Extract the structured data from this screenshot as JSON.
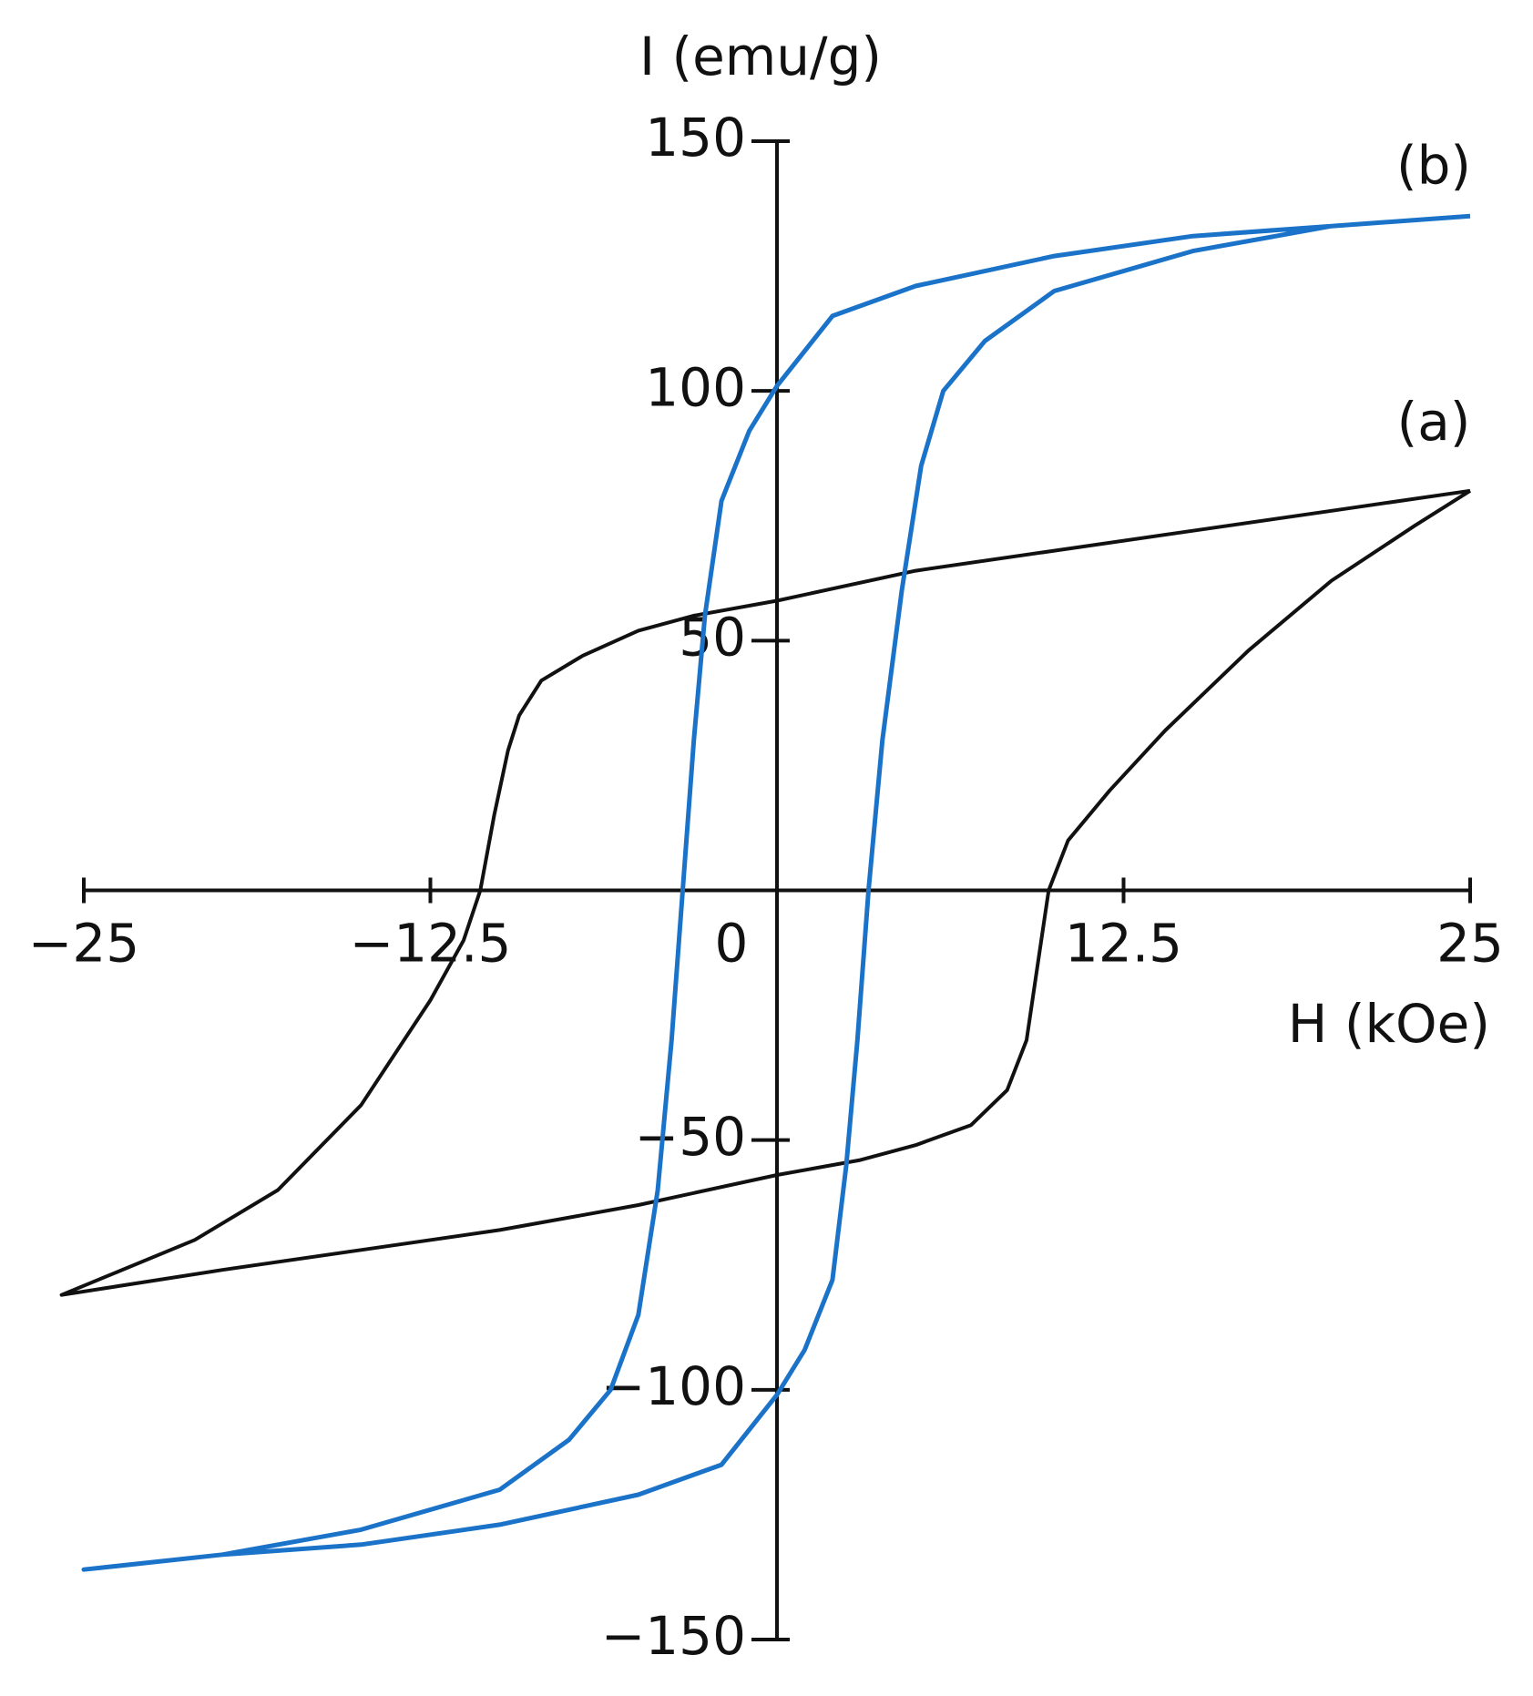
{
  "chart_data": {
    "type": "line",
    "x_label": "H (kOe)",
    "y_label": "I (emu/g)",
    "xlim": [
      -25,
      25
    ],
    "ylim": [
      -150,
      150
    ],
    "xticks": [
      {
        "value": -25,
        "label": "−25"
      },
      {
        "value": -12.5,
        "label": "−12.5"
      },
      0,
      12.5,
      25
    ],
    "yticks": [
      {
        "value": -150,
        "label": "−150"
      },
      {
        "value": -100,
        "label": "−100"
      },
      {
        "value": -50,
        "label": "−50"
      },
      50,
      100,
      150
    ],
    "series": [
      {
        "name": "(a)",
        "color": "#111111",
        "x": [
          25,
          20,
          15,
          10,
          5,
          0,
          -3,
          -5,
          -7,
          -8.5,
          -9.3,
          -9.7,
          -10.2,
          -10.7,
          -11.3,
          -12.5,
          -15,
          -18,
          -21,
          -25.8,
          -20,
          -15,
          -10,
          -5,
          0,
          3,
          5,
          7,
          8.3,
          9,
          9.4,
          9.8,
          10.5,
          12,
          14,
          17,
          20,
          23,
          25
        ],
        "values": [
          80,
          76,
          72,
          68,
          64,
          58,
          55,
          52,
          47,
          42,
          35,
          28,
          15,
          0,
          -10,
          -22,
          -43,
          -60,
          -70,
          -81,
          -76,
          -72,
          -68,
          -63,
          -57,
          -54,
          -51,
          -47,
          -40,
          -30,
          -15,
          0,
          10,
          20,
          32,
          48,
          62,
          73,
          80
        ]
      },
      {
        "name": "(b)",
        "color": "#1a73c8",
        "x": [
          25,
          20,
          15,
          10,
          5,
          2,
          0,
          -1,
          -2,
          -2.6,
          -3,
          -3.4,
          -3.8,
          -4.3,
          -5,
          -6,
          -7.5,
          -10,
          -15,
          -20,
          -25,
          -20,
          -15,
          -10,
          -5,
          -2,
          0,
          1,
          2,
          2.5,
          2.9,
          3.3,
          3.8,
          4.5,
          5.2,
          6,
          7.5,
          10,
          15,
          20,
          25
        ],
        "values": [
          135,
          133,
          131,
          127,
          121,
          115,
          101,
          92,
          78,
          55,
          30,
          0,
          -30,
          -60,
          -85,
          -100,
          -110,
          -120,
          -128,
          -133,
          -136,
          -133,
          -131,
          -127,
          -121,
          -115,
          -101,
          -92,
          -78,
          -55,
          -30,
          0,
          30,
          60,
          85,
          100,
          110,
          120,
          128,
          133,
          135
        ]
      }
    ]
  }
}
